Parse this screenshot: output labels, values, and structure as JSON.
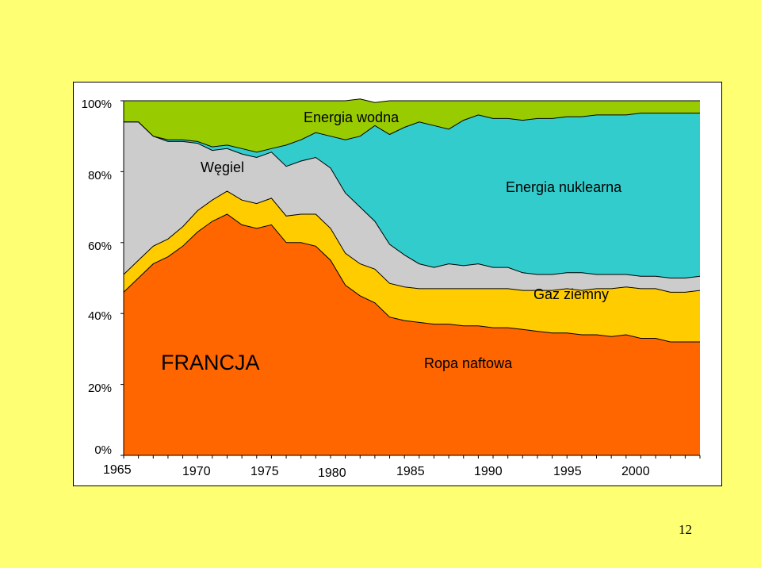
{
  "page": {
    "number": "12"
  },
  "chart_data": {
    "type": "area",
    "stacked": true,
    "percent": true,
    "title": "FRANCJA",
    "x_tick_labels": [
      "1965",
      "1970",
      "1975",
      "1980",
      "1985",
      "1990",
      "1995",
      "2000"
    ],
    "y_tick_labels": [
      "0%",
      "20%",
      "40%",
      "60%",
      "80%",
      "100%"
    ],
    "ylim": [
      0,
      100
    ],
    "x": [
      1965,
      1966,
      1967,
      1968,
      1969,
      1970,
      1971,
      1972,
      1973,
      1974,
      1975,
      1976,
      1977,
      1978,
      1979,
      1980,
      1981,
      1982,
      1983,
      1984,
      1985,
      1986,
      1987,
      1988,
      1989,
      1990,
      1991,
      1992,
      1993,
      1994,
      1995,
      1996,
      1997,
      1998,
      1999,
      2000,
      2001,
      2002,
      2003,
      2004
    ],
    "series": [
      {
        "name": "Ropa naftowa",
        "color": "#ff6600",
        "values": [
          46,
          50,
          54,
          56,
          59,
          63,
          66,
          68,
          65,
          64,
          65,
          60,
          60,
          59,
          55,
          48,
          45,
          43,
          39,
          38,
          37.5,
          37,
          37,
          36.5,
          36.5,
          36,
          36,
          35.5,
          35,
          34.5,
          34.5,
          34,
          34,
          33.5,
          34,
          33,
          33,
          32,
          32,
          32
        ]
      },
      {
        "name": "Gaz ziemny",
        "color": "#ffcc00",
        "values": [
          5,
          5,
          5,
          5,
          5.5,
          6,
          6,
          6.5,
          7,
          7,
          7.5,
          7.5,
          8,
          9,
          9,
          9,
          9,
          9.5,
          9.5,
          9.5,
          9.5,
          10,
          10,
          10.5,
          10.5,
          11,
          11,
          11,
          11.5,
          12,
          12.5,
          12.5,
          13,
          13.5,
          13.5,
          14,
          14,
          14,
          14,
          14.5
        ]
      },
      {
        "name": "Węgiel",
        "color": "#cccccc",
        "values": [
          43,
          39,
          31,
          27.5,
          24,
          19,
          14,
          12,
          13,
          13,
          13,
          14,
          15,
          16,
          17,
          17,
          16,
          13.5,
          11,
          9,
          7,
          6,
          7,
          6.5,
          7,
          6,
          6,
          5,
          4.5,
          4.5,
          4.5,
          5,
          4,
          4,
          3.5,
          3.5,
          3.5,
          4,
          4,
          4
        ]
      },
      {
        "name": "Energia nuklearna",
        "color": "#33cccc",
        "values": [
          0,
          0,
          0,
          0.5,
          0.5,
          0.5,
          1,
          1,
          1.5,
          1.5,
          1,
          6,
          6,
          7,
          9,
          15,
          20,
          27,
          31,
          36,
          40,
          40,
          38,
          41,
          42,
          42,
          42,
          43,
          44,
          44,
          44,
          44,
          45,
          45,
          45,
          46,
          46,
          46.5,
          46.5,
          46
        ]
      },
      {
        "name": "Energia wodna",
        "color": "#99cc00",
        "values": [
          6,
          6,
          10,
          11,
          11,
          11.5,
          13,
          12.5,
          13.5,
          14.5,
          13.5,
          12.5,
          11,
          9,
          10,
          11,
          10.5,
          6.5,
          9.5,
          7.5,
          6,
          7,
          8,
          5.5,
          4,
          5,
          5,
          5.5,
          5,
          5,
          4.5,
          4.5,
          4,
          4,
          4,
          3.5,
          3.5,
          3.5,
          3.5,
          3.5
        ]
      }
    ]
  }
}
